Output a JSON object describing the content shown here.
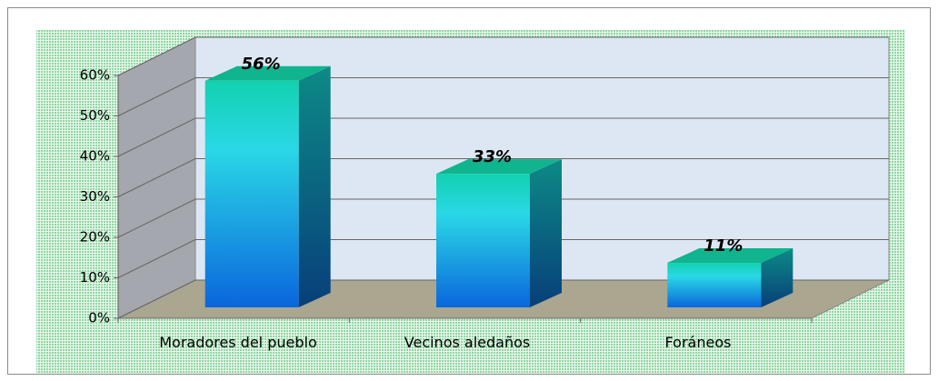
{
  "chart_data": {
    "type": "bar3d",
    "categories": [
      "Moradores del pueblo",
      "Vecinos aledaños",
      "Foráneos"
    ],
    "values": [
      56,
      33,
      11
    ],
    "value_labels": [
      "56%",
      "33%",
      "11%"
    ],
    "ylim": [
      0,
      60
    ],
    "yticks": [
      {
        "value": 0,
        "label": "0%"
      },
      {
        "value": 10,
        "label": "10%"
      },
      {
        "value": 20,
        "label": "20%"
      },
      {
        "value": 30,
        "label": "30%"
      },
      {
        "value": 40,
        "label": "40%"
      },
      {
        "value": 50,
        "label": "50%"
      },
      {
        "value": 60,
        "label": "60%"
      }
    ],
    "grid": true
  }
}
